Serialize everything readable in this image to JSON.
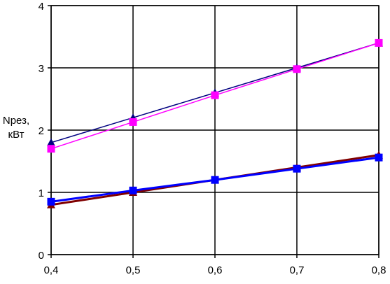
{
  "chart_data": {
    "type": "line",
    "y_label": [
      "Nрез,",
      "кВт"
    ],
    "x": [
      0.4,
      0.5,
      0.6,
      0.7,
      0.8
    ],
    "xlim": [
      0.4,
      0.8
    ],
    "xticks": [
      {
        "value": 0.4,
        "label": "0,4"
      },
      {
        "value": 0.5,
        "label": "0,5"
      },
      {
        "value": 0.6,
        "label": "0,6"
      },
      {
        "value": 0.7,
        "label": "0,7"
      },
      {
        "value": 0.8,
        "label": "0,8"
      }
    ],
    "ylim": [
      0,
      4
    ],
    "yticks": [
      0,
      1,
      2,
      3,
      4
    ],
    "grid": true,
    "series": [
      {
        "color": "#000080",
        "marker": "triangle",
        "width": 1.5,
        "values": [
          1.8,
          2.2,
          2.6,
          3.0,
          3.4
        ]
      },
      {
        "color": "#ff00ff",
        "marker": "square",
        "width": 1.5,
        "values": [
          1.7,
          2.13,
          2.56,
          2.98,
          3.4
        ]
      },
      {
        "color": "#800000",
        "marker": "triangle",
        "width": 3,
        "values": [
          0.8,
          1.0,
          1.2,
          1.4,
          1.6
        ]
      },
      {
        "color": "#0000ff",
        "marker": "square",
        "width": 3,
        "values": [
          0.85,
          1.03,
          1.2,
          1.38,
          1.56
        ]
      }
    ]
  }
}
